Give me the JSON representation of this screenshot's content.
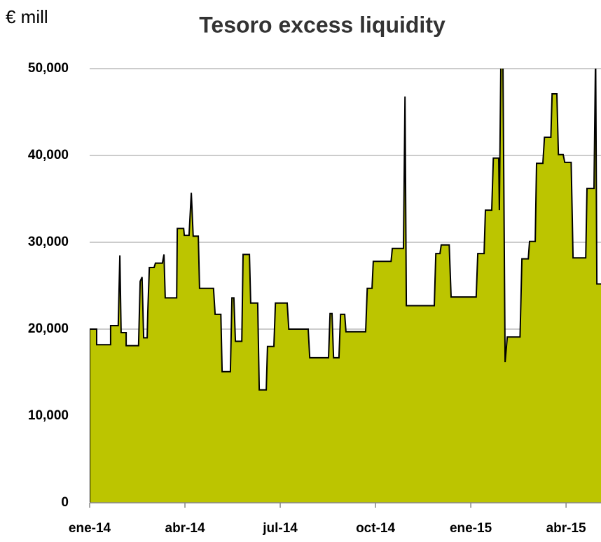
{
  "chart_data": {
    "type": "area",
    "title": "Tesoro excess liquidity",
    "unit_label": "€ mill",
    "color": "#bcc500",
    "line_color": "#000000",
    "grid": true,
    "xlim": [
      0,
      16.1
    ],
    "xticks": [
      {
        "value": 0,
        "label": "ene-14"
      },
      {
        "value": 3,
        "label": "abr-14"
      },
      {
        "value": 6,
        "label": "jul-14"
      },
      {
        "value": 9,
        "label": "oct-14"
      },
      {
        "value": 12,
        "label": "ene-15"
      },
      {
        "value": 15,
        "label": "abr-15"
      }
    ],
    "ylim": [
      0,
      50000
    ],
    "yticks": [
      0,
      {
        "value": 10000,
        "label": "10,000"
      },
      {
        "value": 20000,
        "label": "20,000"
      },
      {
        "value": 30000,
        "label": "30,000"
      },
      {
        "value": 40000,
        "label": "40,000"
      },
      {
        "value": 50000,
        "label": "50,000"
      }
    ],
    "x": [
      0,
      0,
      0.22,
      0.22,
      0.66,
      0.66,
      0.9,
      0.95,
      0.99,
      1.15,
      1.15,
      1.54,
      1.59,
      1.65,
      1.7,
      1.81,
      1.83,
      1.88,
      2.03,
      2.07,
      2.25,
      2.29,
      2.34,
      2.38,
      2.74,
      2.76,
      2.96,
      2.98,
      3.13,
      3.2,
      3.26,
      3.42,
      3.46,
      3.9,
      3.95,
      4.13,
      4.17,
      4.43,
      4.48,
      4.54,
      4.59,
      4.79,
      4.83,
      5.03,
      5.07,
      5.29,
      5.34,
      5.56,
      5.6,
      5.8,
      5.85,
      6.22,
      6.27,
      6.88,
      6.93,
      7.52,
      7.57,
      7.63,
      7.68,
      7.85,
      7.9,
      8.03,
      8.07,
      8.69,
      8.74,
      8.89,
      8.93,
      9.49,
      9.53,
      9.88,
      9.93,
      9.97,
      10.85,
      10.9,
      11.03,
      11.07,
      11.32,
      11.38,
      12.17,
      12.22,
      12.42,
      12.46,
      12.66,
      12.71,
      12.88,
      12.9,
      12.95,
      13.01,
      13.08,
      13.15,
      13.55,
      13.61,
      13.81,
      13.85,
      14.03,
      14.07,
      14.27,
      14.32,
      14.52,
      14.56,
      14.71,
      14.76,
      14.91,
      14.96,
      15.16,
      15.22,
      15.62,
      15.66,
      15.88,
      15.93,
      15.97,
      16.1
    ],
    "values": [
      0,
      20000,
      20000,
      18200,
      18200,
      20400,
      20400,
      28500,
      19600,
      19600,
      18100,
      18100,
      25500,
      26000,
      19000,
      19000,
      22000,
      27100,
      27100,
      27600,
      27600,
      27600,
      28600,
      23600,
      23600,
      31600,
      31600,
      30800,
      30800,
      35700,
      30700,
      30700,
      24700,
      24700,
      21700,
      21700,
      15100,
      15100,
      23600,
      23600,
      18600,
      18600,
      28600,
      28600,
      23000,
      23000,
      13000,
      13000,
      18000,
      18000,
      23000,
      23000,
      20000,
      20000,
      16700,
      16700,
      21800,
      21800,
      16700,
      16700,
      21700,
      21700,
      19700,
      19700,
      24700,
      24700,
      27800,
      27800,
      29300,
      29300,
      46800,
      22700,
      22700,
      28700,
      28700,
      29700,
      29700,
      23700,
      23700,
      28700,
      28700,
      33700,
      33700,
      39700,
      39700,
      33700,
      52000,
      52000,
      16200,
      19100,
      19100,
      28100,
      28100,
      30100,
      30100,
      39100,
      39100,
      42100,
      42100,
      47100,
      47100,
      40100,
      40100,
      39200,
      39200,
      28200,
      28200,
      36200,
      36200,
      52000,
      25200,
      25200
    ]
  }
}
